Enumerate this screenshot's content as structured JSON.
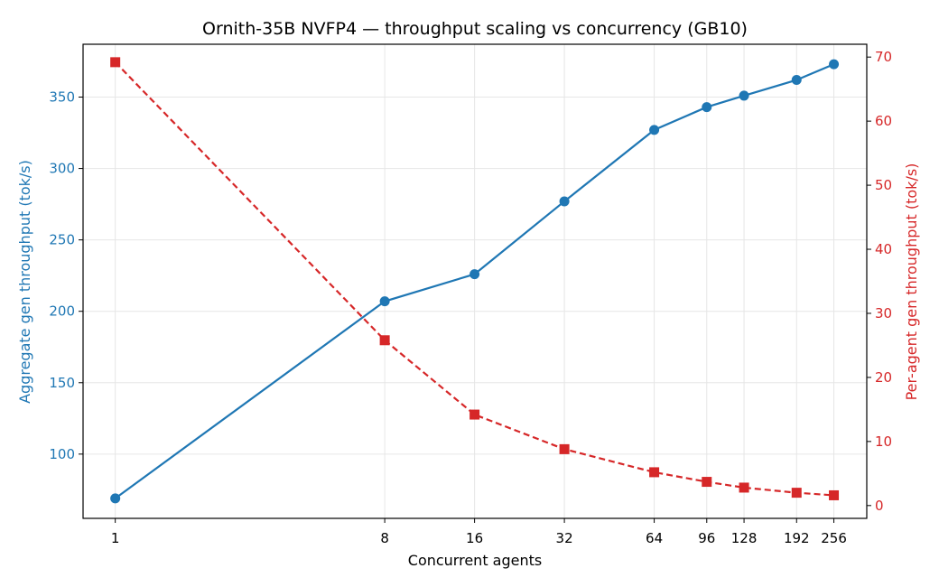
{
  "chart_data": {
    "type": "line",
    "title": "Ornith-35B NVFP4 — throughput scaling vs concurrency (GB10)",
    "xlabel": "Concurrent agents",
    "ylabel_left": "Aggregate gen throughput (tok/s)",
    "ylabel_right": "Per-agent gen throughput (tok/s)",
    "x_scale": "log2",
    "x": [
      1,
      8,
      16,
      32,
      64,
      96,
      128,
      192,
      256
    ],
    "x_tick_labels": [
      "1",
      "8",
      "16",
      "32",
      "64",
      "96",
      "128",
      "192",
      "256"
    ],
    "x_range": [
      0.78,
      330
    ],
    "y_left_range": [
      55,
      387
    ],
    "y_left_ticks": [
      100,
      150,
      200,
      250,
      300,
      350
    ],
    "y_right_range": [
      -2,
      72
    ],
    "y_right_ticks": [
      0,
      10,
      20,
      30,
      40,
      50,
      60,
      70
    ],
    "grid": true,
    "series": [
      {
        "axis": "left",
        "marker": "circle",
        "line_style": "solid",
        "color": "#1f77b4",
        "values": [
          69,
          207,
          226,
          277,
          327,
          343,
          351,
          362,
          373
        ]
      },
      {
        "axis": "right",
        "marker": "square",
        "line_style": "dashed",
        "color": "#d62728",
        "values": [
          69.2,
          25.8,
          14.2,
          8.8,
          5.2,
          3.7,
          2.8,
          2.0,
          1.6
        ]
      }
    ]
  }
}
